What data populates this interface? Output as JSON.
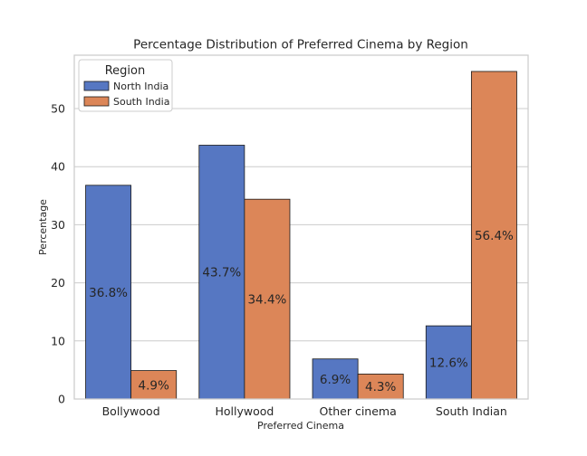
{
  "chart_data": {
    "type": "bar",
    "title": "Percentage Distribution of Preferred Cinema by Region",
    "xlabel": "Preferred Cinema",
    "ylabel": "Percentage",
    "categories": [
      "Bollywood",
      "Hollywood",
      "Other cinema",
      "South Indian"
    ],
    "series": [
      {
        "name": "North India",
        "values": [
          36.8,
          43.7,
          6.9,
          12.6
        ],
        "labels": [
          "36.8%",
          "43.7%",
          "6.9%",
          "12.6%"
        ],
        "color": "#5677c2"
      },
      {
        "name": "South India",
        "values": [
          4.9,
          34.4,
          4.3,
          56.4
        ],
        "labels": [
          "4.9%",
          "34.4%",
          "4.3%",
          "56.4%"
        ],
        "color": "#dc8658"
      }
    ],
    "ylim": [
      0,
      59.2
    ],
    "yticks": [
      0,
      10,
      20,
      30,
      40,
      50
    ],
    "ytick_labels": [
      "0",
      "10",
      "20",
      "30",
      "40",
      "50"
    ],
    "grid": true,
    "legend": {
      "title": "Region",
      "placement": "top-left"
    }
  }
}
